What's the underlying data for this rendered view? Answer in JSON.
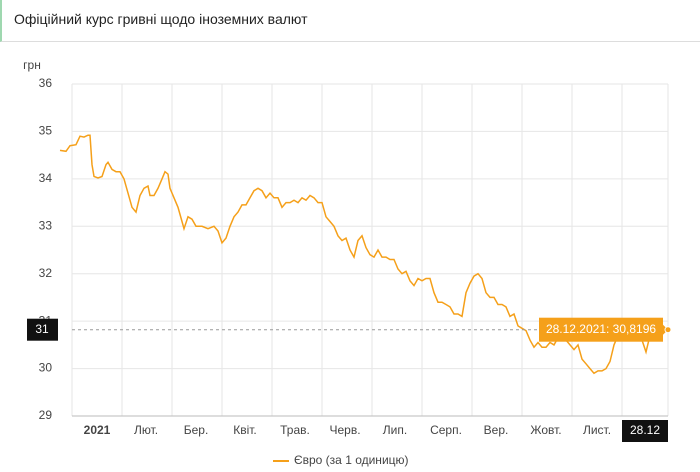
{
  "chart_data": {
    "type": "line",
    "title": "Офіційний курс гривні щодо іноземних валют",
    "y_label": "грн",
    "xlim": [
      0,
      305
    ],
    "ylim": [
      29,
      36
    ],
    "yticks": [
      29,
      30,
      31,
      32,
      33,
      34,
      35,
      36
    ],
    "xticks": [
      {
        "value": 19.5,
        "label": "2021"
      },
      {
        "value": 44,
        "label": "Лют."
      },
      {
        "value": 69,
        "label": "Бер."
      },
      {
        "value": 93.5,
        "label": "Квіт."
      },
      {
        "value": 118.5,
        "label": "Трав."
      },
      {
        "value": 143.5,
        "label": "Черв."
      },
      {
        "value": 168.5,
        "label": "Лип."
      },
      {
        "value": 194,
        "label": "Серп."
      },
      {
        "value": 219,
        "label": "Вер."
      },
      {
        "value": 244,
        "label": "Жовт."
      },
      {
        "value": 269.5,
        "label": "Лист."
      }
    ],
    "xgrid": [
      7,
      32,
      57,
      82,
      107,
      132,
      157,
      182,
      207,
      232,
      257,
      282,
      305
    ],
    "grid": true,
    "crosshair": {
      "x": 305,
      "x_label": "28.12",
      "y": 30.8196,
      "y_label": "31",
      "tooltip": "28.12.2021: 30,8196"
    },
    "series": [
      {
        "name": "Євро (за 1 одиницю)",
        "color": "#f5a01a",
        "x": [
          1,
          4,
          6,
          9,
          11,
          13,
          15,
          16,
          17,
          18,
          20,
          22,
          24,
          25,
          27,
          29,
          31,
          33,
          35,
          37,
          39,
          41,
          43,
          45,
          46,
          48,
          50,
          52,
          53.5,
          55,
          56,
          58,
          60,
          62,
          63,
          65,
          67,
          69,
          72,
          75,
          78,
          80,
          82,
          84,
          86,
          88,
          90,
          92,
          94,
          96,
          98,
          100,
          102,
          104,
          106,
          108,
          110,
          112,
          114,
          116,
          118,
          120,
          122,
          124,
          126,
          128,
          130,
          132,
          134,
          136,
          138,
          140,
          142,
          144,
          146,
          148,
          150,
          152,
          154,
          156,
          158,
          160,
          162,
          164,
          166,
          168,
          170,
          172,
          174,
          176,
          178,
          180,
          182,
          184,
          186,
          188,
          190,
          192,
          194,
          196,
          198,
          200,
          202,
          204,
          206,
          208,
          210,
          212,
          214,
          216,
          218,
          220,
          222,
          224,
          226,
          228,
          230,
          232,
          234,
          236,
          238,
          240,
          242,
          244,
          246,
          248,
          250,
          252,
          254,
          256,
          258,
          260,
          262,
          264,
          266,
          268,
          270,
          272,
          274,
          276,
          278,
          280,
          282,
          284,
          286,
          288,
          290,
          292,
          294,
          296,
          298,
          300,
          302,
          305
        ],
        "values": [
          34.6,
          34.58,
          34.7,
          34.72,
          34.9,
          34.88,
          34.92,
          34.92,
          34.3,
          34.05,
          34.02,
          34.05,
          34.3,
          34.35,
          34.2,
          34.15,
          34.15,
          34.0,
          33.7,
          33.4,
          33.3,
          33.65,
          33.8,
          33.85,
          33.65,
          33.65,
          33.8,
          34.0,
          34.15,
          34.1,
          33.8,
          33.6,
          33.4,
          33.1,
          32.95,
          33.2,
          33.15,
          33.0,
          33.0,
          32.95,
          33.0,
          32.9,
          32.65,
          32.75,
          33.0,
          33.2,
          33.3,
          33.45,
          33.45,
          33.6,
          33.75,
          33.8,
          33.75,
          33.6,
          33.7,
          33.6,
          33.6,
          33.4,
          33.5,
          33.5,
          33.55,
          33.5,
          33.6,
          33.55,
          33.65,
          33.6,
          33.5,
          33.5,
          33.2,
          33.1,
          33.0,
          32.8,
          32.7,
          32.75,
          32.5,
          32.35,
          32.7,
          32.8,
          32.55,
          32.4,
          32.35,
          32.5,
          32.35,
          32.35,
          32.3,
          32.3,
          32.1,
          32.0,
          32.05,
          31.85,
          31.75,
          31.9,
          31.85,
          31.9,
          31.9,
          31.6,
          31.4,
          31.4,
          31.35,
          31.3,
          31.15,
          31.15,
          31.1,
          31.6,
          31.8,
          31.95,
          32.0,
          31.9,
          31.6,
          31.5,
          31.5,
          31.35,
          31.35,
          31.3,
          31.1,
          31.15,
          30.9,
          30.85,
          30.8,
          30.6,
          30.45,
          30.55,
          30.45,
          30.45,
          30.55,
          30.5,
          30.65,
          30.6,
          30.6,
          30.5,
          30.4,
          30.5,
          30.2,
          30.1,
          30.0,
          29.9,
          29.95,
          29.95,
          30.0,
          30.15,
          30.5,
          30.7,
          30.65,
          30.6,
          30.7,
          30.85,
          30.75,
          30.6,
          30.35,
          30.7,
          30.8,
          30.85,
          30.8,
          30.8196
        ]
      }
    ]
  }
}
